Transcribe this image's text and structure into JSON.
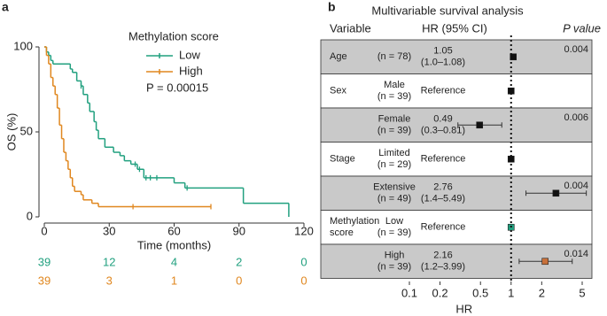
{
  "panel_a": {
    "label": "a",
    "chart_data": {
      "type": "km",
      "ylabel": "OS (%)",
      "xlabel": "Time (months)",
      "xlim": [
        0,
        120
      ],
      "xticks": [
        0,
        30,
        60,
        90,
        120
      ],
      "ylim": [
        0,
        100
      ],
      "yticks": [
        0,
        50,
        100
      ],
      "legend_title": "Methylation score",
      "annotation": "P = 0.00015",
      "series": [
        {
          "name": "Low",
          "color": "#21a07f",
          "x": [
            0,
            1,
            2,
            3,
            4,
            12,
            13,
            15,
            17,
            18,
            20,
            21,
            23,
            24,
            25,
            28,
            32,
            35,
            37,
            40,
            43,
            46,
            60,
            65,
            92,
            113
          ],
          "values": [
            100,
            97,
            95,
            92,
            90,
            87,
            85,
            80,
            77,
            72,
            67,
            62,
            56,
            51,
            46,
            41,
            38,
            36,
            33,
            31,
            28,
            23,
            20,
            17,
            8,
            0
          ],
          "censored": [
            17,
            42,
            44,
            47,
            49,
            52,
            66
          ],
          "at_risk": [
            39,
            12,
            4,
            2,
            0
          ]
        },
        {
          "name": "High",
          "color": "#e0871f",
          "x": [
            0,
            1,
            2,
            3,
            4,
            5,
            6,
            7,
            8,
            9,
            10,
            11,
            12,
            13,
            14,
            17,
            18,
            22,
            25,
            77
          ],
          "values": [
            100,
            95,
            90,
            82,
            77,
            72,
            64,
            54,
            46,
            38,
            33,
            28,
            23,
            18,
            15,
            13,
            10,
            8,
            6,
            6
          ],
          "censored": [
            41,
            77
          ],
          "at_risk": [
            39,
            3,
            1,
            0,
            0
          ]
        }
      ]
    }
  },
  "panel_b": {
    "label": "b",
    "chart_data": {
      "type": "forest",
      "title": "Multivariable survival analysis",
      "headers": [
        "Variable",
        "HR (95% CI)",
        "P value"
      ],
      "xlabel": "HR",
      "log_scale": true,
      "xlim": [
        0.1,
        5
      ],
      "xticks": [
        0.1,
        0.2,
        0.5,
        1,
        2,
        5
      ],
      "reference": 1,
      "rows": [
        {
          "variable": [
            "Age"
          ],
          "group": [
            "(n = 78)"
          ],
          "hr_text": [
            "1.05",
            "(1.0–1.08)"
          ],
          "hr": 1.05,
          "ci": [
            1.0,
            1.08
          ],
          "p": "0.004",
          "shaded": true,
          "color": "#111111"
        },
        {
          "variable": [
            "Sex"
          ],
          "group": [
            "Male",
            "(n = 39)"
          ],
          "hr_text": [
            "Reference"
          ],
          "hr": 1,
          "shaded": false,
          "color": "#111111"
        },
        {
          "group": [
            "Female",
            "(n = 39)"
          ],
          "hr_text": [
            "0.49",
            "(0.3–0.81)"
          ],
          "hr": 0.49,
          "ci": [
            0.3,
            0.81
          ],
          "p": "0.006",
          "shaded": true,
          "color": "#111111"
        },
        {
          "variable": [
            "Stage"
          ],
          "group": [
            "Limited",
            "(n = 29)"
          ],
          "hr_text": [
            "Reference"
          ],
          "hr": 1,
          "shaded": false,
          "color": "#111111"
        },
        {
          "group": [
            "Extensive",
            "(n = 49)"
          ],
          "hr_text": [
            "2.76",
            "(1.4–5.49)"
          ],
          "hr": 2.76,
          "ci": [
            1.4,
            5.49
          ],
          "p": "0.004",
          "shaded": true,
          "color": "#111111"
        },
        {
          "variable": [
            "Methylation",
            "score"
          ],
          "group": [
            "Low",
            "(n = 39)"
          ],
          "hr_text": [
            "Reference"
          ],
          "hr": 1,
          "shaded": false,
          "color": "#21a07f"
        },
        {
          "group": [
            "High",
            "(n = 39)"
          ],
          "hr_text": [
            "2.16",
            "(1.2–3.99)"
          ],
          "hr": 2.16,
          "ci": [
            1.2,
            3.99
          ],
          "p": "0.014",
          "shaded": true,
          "color": "#c8703a"
        }
      ]
    }
  }
}
